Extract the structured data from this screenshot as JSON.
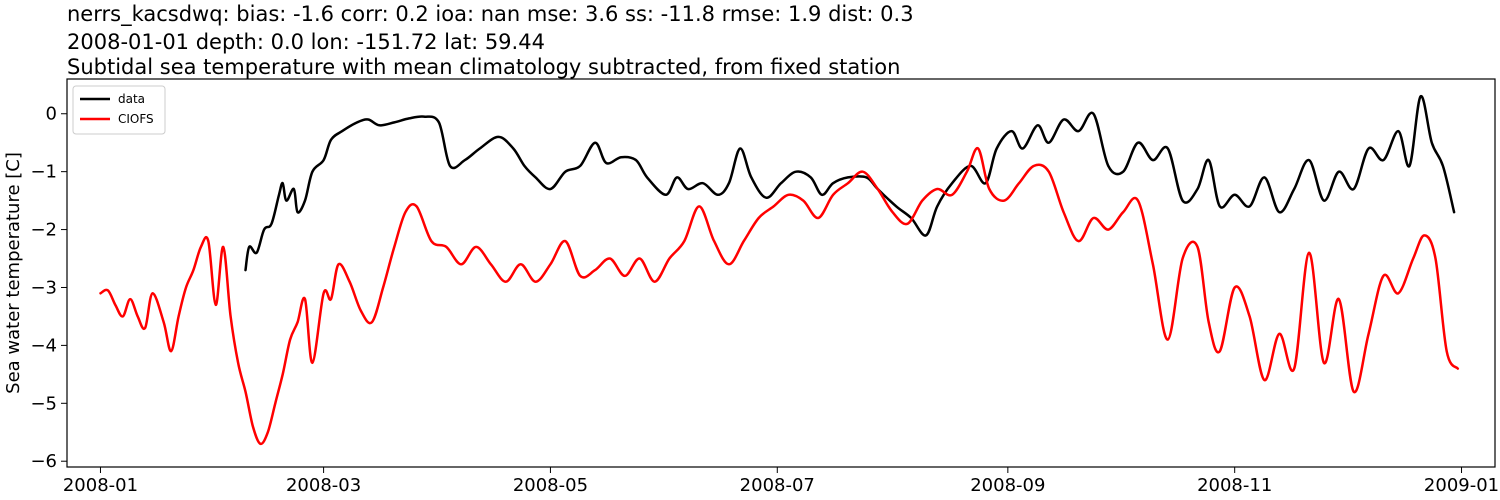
{
  "header": {
    "line1": "nerrs_kacsdwq: bias: -1.6  corr: 0.2  ioa: nan  mse: 3.6  ss: -11.8  rmse: 1.9  dist: 0.3",
    "line2": "2008-01-01 depth: 0.0 lon: -151.72 lat: 59.44",
    "line3": "Subtidal sea temperature with mean climatology subtracted, from fixed station"
  },
  "chart_data": {
    "type": "line",
    "title": "Subtidal sea temperature with mean climatology subtracted, from fixed station",
    "xlabel": "",
    "ylabel": "Sea water temperature [C]",
    "x_is_date": true,
    "xlim": [
      "2007-12-23",
      "2009-01-10"
    ],
    "ylim": [
      -6.1,
      0.6
    ],
    "x_ticks": [
      "2008-01-01",
      "2008-03-01",
      "2008-05-01",
      "2008-07-01",
      "2008-09-01",
      "2008-11-01",
      "2009-01-01"
    ],
    "x_tick_labels": [
      "2008-01",
      "2008-03",
      "2008-05",
      "2008-07",
      "2008-09",
      "2008-11",
      "2009-01"
    ],
    "y_ticks": [
      0,
      -1,
      -2,
      -3,
      -4,
      -5,
      -6
    ],
    "y_tick_labels": [
      "0",
      "−1",
      "−2",
      "−3",
      "−4",
      "−5",
      "−6"
    ],
    "grid": false,
    "legend": {
      "position": "top-left"
    },
    "series": [
      {
        "name": "data",
        "color": "#000000",
        "points": [
          [
            "2008-02-09",
            -2.7
          ],
          [
            "2008-02-10",
            -2.3
          ],
          [
            "2008-02-12",
            -2.4
          ],
          [
            "2008-02-14",
            -2.0
          ],
          [
            "2008-02-16",
            -1.9
          ],
          [
            "2008-02-18",
            -1.4
          ],
          [
            "2008-02-19",
            -1.2
          ],
          [
            "2008-02-20",
            -1.5
          ],
          [
            "2008-02-22",
            -1.3
          ],
          [
            "2008-02-23",
            -1.7
          ],
          [
            "2008-02-25",
            -1.5
          ],
          [
            "2008-02-27",
            -1.0
          ],
          [
            "2008-03-01",
            -0.8
          ],
          [
            "2008-03-03",
            -0.45
          ],
          [
            "2008-03-06",
            -0.3
          ],
          [
            "2008-03-10",
            -0.15
          ],
          [
            "2008-03-13",
            -0.1
          ],
          [
            "2008-03-16",
            -0.2
          ],
          [
            "2008-03-20",
            -0.15
          ],
          [
            "2008-03-24",
            -0.08
          ],
          [
            "2008-03-28",
            -0.05
          ],
          [
            "2008-04-01",
            -0.15
          ],
          [
            "2008-04-04",
            -0.9
          ],
          [
            "2008-04-08",
            -0.8
          ],
          [
            "2008-04-12",
            -0.6
          ],
          [
            "2008-04-17",
            -0.4
          ],
          [
            "2008-04-21",
            -0.6
          ],
          [
            "2008-04-24",
            -0.9
          ],
          [
            "2008-04-27",
            -1.1
          ],
          [
            "2008-05-01",
            -1.3
          ],
          [
            "2008-05-05",
            -1.0
          ],
          [
            "2008-05-09",
            -0.9
          ],
          [
            "2008-05-13",
            -0.5
          ],
          [
            "2008-05-16",
            -0.85
          ],
          [
            "2008-05-20",
            -0.75
          ],
          [
            "2008-05-24",
            -0.8
          ],
          [
            "2008-05-27",
            -1.1
          ],
          [
            "2008-06-01",
            -1.4
          ],
          [
            "2008-06-04",
            -1.1
          ],
          [
            "2008-06-07",
            -1.3
          ],
          [
            "2008-06-11",
            -1.2
          ],
          [
            "2008-06-15",
            -1.4
          ],
          [
            "2008-06-18",
            -1.2
          ],
          [
            "2008-06-21",
            -0.6
          ],
          [
            "2008-06-24",
            -1.1
          ],
          [
            "2008-06-28",
            -1.45
          ],
          [
            "2008-07-02",
            -1.2
          ],
          [
            "2008-07-06",
            -1.0
          ],
          [
            "2008-07-10",
            -1.1
          ],
          [
            "2008-07-13",
            -1.4
          ],
          [
            "2008-07-16",
            -1.2
          ],
          [
            "2008-07-20",
            -1.1
          ],
          [
            "2008-07-25",
            -1.1
          ],
          [
            "2008-07-28",
            -1.3
          ],
          [
            "2008-08-02",
            -1.6
          ],
          [
            "2008-08-06",
            -1.8
          ],
          [
            "2008-08-10",
            -2.1
          ],
          [
            "2008-08-13",
            -1.6
          ],
          [
            "2008-08-17",
            -1.2
          ],
          [
            "2008-08-22",
            -0.9
          ],
          [
            "2008-08-26",
            -1.2
          ],
          [
            "2008-08-29",
            -0.6
          ],
          [
            "2008-09-02",
            -0.3
          ],
          [
            "2008-09-05",
            -0.6
          ],
          [
            "2008-09-09",
            -0.2
          ],
          [
            "2008-09-12",
            -0.5
          ],
          [
            "2008-09-16",
            -0.1
          ],
          [
            "2008-09-20",
            -0.3
          ],
          [
            "2008-09-24",
            0.0
          ],
          [
            "2008-09-28",
            -0.9
          ],
          [
            "2008-10-02",
            -1.0
          ],
          [
            "2008-10-06",
            -0.5
          ],
          [
            "2008-10-10",
            -0.8
          ],
          [
            "2008-10-14",
            -0.6
          ],
          [
            "2008-10-18",
            -1.5
          ],
          [
            "2008-10-22",
            -1.3
          ],
          [
            "2008-10-25",
            -0.8
          ],
          [
            "2008-10-28",
            -1.6
          ],
          [
            "2008-11-01",
            -1.4
          ],
          [
            "2008-11-05",
            -1.6
          ],
          [
            "2008-11-09",
            -1.1
          ],
          [
            "2008-11-13",
            -1.7
          ],
          [
            "2008-11-17",
            -1.3
          ],
          [
            "2008-11-21",
            -0.8
          ],
          [
            "2008-11-25",
            -1.5
          ],
          [
            "2008-11-29",
            -1.0
          ],
          [
            "2008-12-03",
            -1.3
          ],
          [
            "2008-12-07",
            -0.6
          ],
          [
            "2008-12-11",
            -0.8
          ],
          [
            "2008-12-15",
            -0.3
          ],
          [
            "2008-12-18",
            -0.9
          ],
          [
            "2008-12-21",
            0.3
          ],
          [
            "2008-12-24",
            -0.5
          ],
          [
            "2008-12-27",
            -0.9
          ],
          [
            "2008-12-30",
            -1.7
          ]
        ]
      },
      {
        "name": "CIOFS",
        "color": "#ff0000",
        "points": [
          [
            "2008-01-01",
            -3.1
          ],
          [
            "2008-01-03",
            -3.05
          ],
          [
            "2008-01-05",
            -3.3
          ],
          [
            "2008-01-07",
            -3.5
          ],
          [
            "2008-01-09",
            -3.2
          ],
          [
            "2008-01-11",
            -3.5
          ],
          [
            "2008-01-13",
            -3.7
          ],
          [
            "2008-01-15",
            -3.1
          ],
          [
            "2008-01-18",
            -3.6
          ],
          [
            "2008-01-20",
            -4.1
          ],
          [
            "2008-01-22",
            -3.5
          ],
          [
            "2008-01-24",
            -3.0
          ],
          [
            "2008-01-26",
            -2.7
          ],
          [
            "2008-01-28",
            -2.3
          ],
          [
            "2008-01-30",
            -2.2
          ],
          [
            "2008-02-01",
            -3.3
          ],
          [
            "2008-02-03",
            -2.3
          ],
          [
            "2008-02-05",
            -3.5
          ],
          [
            "2008-02-07",
            -4.3
          ],
          [
            "2008-02-09",
            -4.8
          ],
          [
            "2008-02-11",
            -5.4
          ],
          [
            "2008-02-13",
            -5.7
          ],
          [
            "2008-02-15",
            -5.5
          ],
          [
            "2008-02-17",
            -5.0
          ],
          [
            "2008-02-19",
            -4.5
          ],
          [
            "2008-02-21",
            -3.9
          ],
          [
            "2008-02-23",
            -3.6
          ],
          [
            "2008-02-25",
            -3.2
          ],
          [
            "2008-02-27",
            -4.3
          ],
          [
            "2008-03-01",
            -3.1
          ],
          [
            "2008-03-03",
            -3.2
          ],
          [
            "2008-03-05",
            -2.6
          ],
          [
            "2008-03-08",
            -2.9
          ],
          [
            "2008-03-11",
            -3.4
          ],
          [
            "2008-03-14",
            -3.6
          ],
          [
            "2008-03-17",
            -3.0
          ],
          [
            "2008-03-20",
            -2.3
          ],
          [
            "2008-03-23",
            -1.7
          ],
          [
            "2008-03-26",
            -1.6
          ],
          [
            "2008-03-30",
            -2.2
          ],
          [
            "2008-04-03",
            -2.3
          ],
          [
            "2008-04-07",
            -2.6
          ],
          [
            "2008-04-11",
            -2.3
          ],
          [
            "2008-04-15",
            -2.6
          ],
          [
            "2008-04-19",
            -2.9
          ],
          [
            "2008-04-23",
            -2.6
          ],
          [
            "2008-04-27",
            -2.9
          ],
          [
            "2008-05-01",
            -2.6
          ],
          [
            "2008-05-05",
            -2.2
          ],
          [
            "2008-05-09",
            -2.8
          ],
          [
            "2008-05-13",
            -2.7
          ],
          [
            "2008-05-17",
            -2.5
          ],
          [
            "2008-05-21",
            -2.8
          ],
          [
            "2008-05-25",
            -2.5
          ],
          [
            "2008-05-29",
            -2.9
          ],
          [
            "2008-06-02",
            -2.5
          ],
          [
            "2008-06-06",
            -2.2
          ],
          [
            "2008-06-10",
            -1.6
          ],
          [
            "2008-06-14",
            -2.2
          ],
          [
            "2008-06-18",
            -2.6
          ],
          [
            "2008-06-22",
            -2.2
          ],
          [
            "2008-06-26",
            -1.8
          ],
          [
            "2008-06-30",
            -1.6
          ],
          [
            "2008-07-04",
            -1.4
          ],
          [
            "2008-07-08",
            -1.5
          ],
          [
            "2008-07-12",
            -1.8
          ],
          [
            "2008-07-16",
            -1.4
          ],
          [
            "2008-07-20",
            -1.2
          ],
          [
            "2008-07-24",
            -1.0
          ],
          [
            "2008-07-28",
            -1.3
          ],
          [
            "2008-08-01",
            -1.7
          ],
          [
            "2008-08-05",
            -1.9
          ],
          [
            "2008-08-09",
            -1.5
          ],
          [
            "2008-08-13",
            -1.3
          ],
          [
            "2008-08-17",
            -1.4
          ],
          [
            "2008-08-21",
            -1.0
          ],
          [
            "2008-08-24",
            -0.6
          ],
          [
            "2008-08-27",
            -1.3
          ],
          [
            "2008-08-31",
            -1.5
          ],
          [
            "2008-09-04",
            -1.2
          ],
          [
            "2008-09-08",
            -0.9
          ],
          [
            "2008-09-12",
            -1.0
          ],
          [
            "2008-09-16",
            -1.7
          ],
          [
            "2008-09-20",
            -2.2
          ],
          [
            "2008-09-24",
            -1.8
          ],
          [
            "2008-09-28",
            -2.0
          ],
          [
            "2008-10-02",
            -1.7
          ],
          [
            "2008-10-06",
            -1.5
          ],
          [
            "2008-10-10",
            -2.6
          ],
          [
            "2008-10-14",
            -3.9
          ],
          [
            "2008-10-18",
            -2.5
          ],
          [
            "2008-10-22",
            -2.3
          ],
          [
            "2008-10-25",
            -3.6
          ],
          [
            "2008-10-28",
            -4.1
          ],
          [
            "2008-11-01",
            -3.0
          ],
          [
            "2008-11-05",
            -3.5
          ],
          [
            "2008-11-09",
            -4.6
          ],
          [
            "2008-11-13",
            -3.8
          ],
          [
            "2008-11-17",
            -4.4
          ],
          [
            "2008-11-21",
            -2.4
          ],
          [
            "2008-11-25",
            -4.3
          ],
          [
            "2008-11-29",
            -3.2
          ],
          [
            "2008-12-03",
            -4.8
          ],
          [
            "2008-12-07",
            -3.8
          ],
          [
            "2008-12-11",
            -2.8
          ],
          [
            "2008-12-15",
            -3.1
          ],
          [
            "2008-12-19",
            -2.5
          ],
          [
            "2008-12-22",
            -2.1
          ],
          [
            "2008-12-25",
            -2.5
          ],
          [
            "2008-12-28",
            -4.1
          ],
          [
            "2008-12-31",
            -4.4
          ]
        ]
      }
    ]
  }
}
